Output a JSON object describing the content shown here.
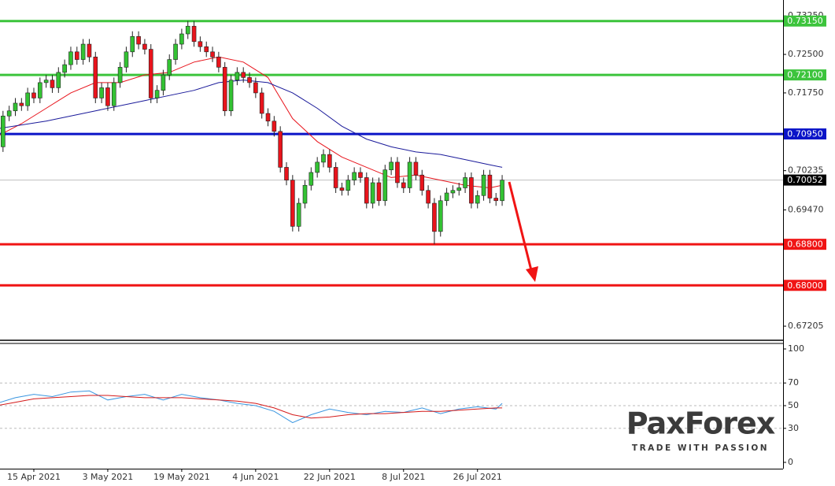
{
  "chart_data": {
    "type": "candlestick",
    "categories": [
      null,
      null,
      null,
      null,
      null,
      null,
      "15 Apr 2021",
      null,
      null,
      null,
      null,
      null,
      null,
      null,
      null,
      null,
      null,
      null,
      "3 May 2021",
      null,
      null,
      null,
      null,
      null,
      null,
      null,
      null,
      null,
      null,
      null,
      "19 May 2021",
      null,
      null,
      null,
      null,
      null,
      null,
      null,
      null,
      null,
      null,
      null,
      "4 Jun 2021",
      null,
      null,
      null,
      null,
      null,
      null,
      null,
      null,
      null,
      null,
      null,
      "22 Jun 2021",
      null,
      null,
      null,
      null,
      null,
      null,
      null,
      null,
      null,
      null,
      null,
      "8 Jul 2021",
      null,
      null,
      null,
      null,
      null,
      null,
      null,
      null,
      null,
      null,
      null,
      "26 Jul 2021",
      null,
      null,
      null,
      null
    ],
    "candles": [
      [
        0.704,
        0.708,
        0.703,
        0.707
      ],
      [
        0.707,
        0.714,
        0.706,
        0.713
      ],
      [
        0.713,
        0.715,
        0.712,
        0.714
      ],
      [
        0.714,
        0.7165,
        0.713,
        0.7155
      ],
      [
        0.7155,
        0.7165,
        0.714,
        0.715
      ],
      [
        0.715,
        0.7185,
        0.714,
        0.7175
      ],
      [
        0.7175,
        0.7185,
        0.7155,
        0.7165
      ],
      [
        0.7165,
        0.7205,
        0.7155,
        0.7195
      ],
      [
        0.7195,
        0.721,
        0.7185,
        0.72
      ],
      [
        0.72,
        0.721,
        0.7175,
        0.7185
      ],
      [
        0.7185,
        0.7225,
        0.7175,
        0.7215
      ],
      [
        0.7215,
        0.724,
        0.7205,
        0.723
      ],
      [
        0.723,
        0.7265,
        0.722,
        0.7255
      ],
      [
        0.7255,
        0.7265,
        0.723,
        0.724
      ],
      [
        0.724,
        0.728,
        0.723,
        0.727
      ],
      [
        0.727,
        0.728,
        0.7235,
        0.7245
      ],
      [
        0.7245,
        0.7255,
        0.7155,
        0.7165
      ],
      [
        0.7165,
        0.7195,
        0.7155,
        0.7185
      ],
      [
        0.7185,
        0.7195,
        0.714,
        0.715
      ],
      [
        0.715,
        0.7205,
        0.714,
        0.7195
      ],
      [
        0.7195,
        0.7235,
        0.7185,
        0.7225
      ],
      [
        0.7225,
        0.7265,
        0.7215,
        0.7255
      ],
      [
        0.7255,
        0.7295,
        0.7245,
        0.7285
      ],
      [
        0.7285,
        0.7295,
        0.726,
        0.727
      ],
      [
        0.727,
        0.728,
        0.725,
        0.726
      ],
      [
        0.726,
        0.727,
        0.7155,
        0.7165
      ],
      [
        0.7165,
        0.719,
        0.7155,
        0.718
      ],
      [
        0.718,
        0.722,
        0.717,
        0.721
      ],
      [
        0.721,
        0.725,
        0.72,
        0.724
      ],
      [
        0.724,
        0.728,
        0.723,
        0.727
      ],
      [
        0.727,
        0.73,
        0.726,
        0.729
      ],
      [
        0.729,
        0.7315,
        0.728,
        0.7305
      ],
      [
        0.7305,
        0.7315,
        0.7265,
        0.7275
      ],
      [
        0.7275,
        0.7285,
        0.7255,
        0.7265
      ],
      [
        0.7265,
        0.7275,
        0.7245,
        0.7255
      ],
      [
        0.7255,
        0.7265,
        0.7235,
        0.7245
      ],
      [
        0.7245,
        0.7255,
        0.7215,
        0.7225
      ],
      [
        0.7225,
        0.7235,
        0.713,
        0.714
      ],
      [
        0.714,
        0.721,
        0.713,
        0.72
      ],
      [
        0.72,
        0.7225,
        0.719,
        0.7215
      ],
      [
        0.7215,
        0.7225,
        0.7195,
        0.7205
      ],
      [
        0.7205,
        0.7215,
        0.7185,
        0.7195
      ],
      [
        0.7195,
        0.7205,
        0.7165,
        0.7175
      ],
      [
        0.7175,
        0.7185,
        0.7125,
        0.7135
      ],
      [
        0.7135,
        0.7145,
        0.711,
        0.712
      ],
      [
        0.712,
        0.713,
        0.709,
        0.71
      ],
      [
        0.71,
        0.711,
        0.702,
        0.703
      ],
      [
        0.703,
        0.704,
        0.6995,
        0.7005
      ],
      [
        0.7005,
        0.7015,
        0.6905,
        0.6915
      ],
      [
        0.6915,
        0.697,
        0.6905,
        0.696
      ],
      [
        0.696,
        0.7005,
        0.695,
        0.6995
      ],
      [
        0.6995,
        0.703,
        0.6985,
        0.702
      ],
      [
        0.702,
        0.705,
        0.701,
        0.704
      ],
      [
        0.704,
        0.7065,
        0.703,
        0.7055
      ],
      [
        0.7055,
        0.7065,
        0.702,
        0.703
      ],
      [
        0.703,
        0.704,
        0.698,
        0.699
      ],
      [
        0.699,
        0.7,
        0.6975,
        0.6985
      ],
      [
        0.6985,
        0.7015,
        0.6975,
        0.7005
      ],
      [
        0.7005,
        0.703,
        0.6995,
        0.702
      ],
      [
        0.702,
        0.703,
        0.7,
        0.701
      ],
      [
        0.701,
        0.702,
        0.695,
        0.696
      ],
      [
        0.696,
        0.701,
        0.695,
        0.7
      ],
      [
        0.7,
        0.701,
        0.6955,
        0.6965
      ],
      [
        0.6965,
        0.7035,
        0.6955,
        0.7025
      ],
      [
        0.7025,
        0.705,
        0.7015,
        0.704
      ],
      [
        0.704,
        0.705,
        0.699,
        0.7
      ],
      [
        0.7,
        0.701,
        0.698,
        0.699
      ],
      [
        0.699,
        0.705,
        0.698,
        0.704
      ],
      [
        0.704,
        0.705,
        0.7005,
        0.7015
      ],
      [
        0.7015,
        0.7025,
        0.6975,
        0.6985
      ],
      [
        0.6985,
        0.6995,
        0.695,
        0.696
      ],
      [
        0.696,
        0.697,
        0.688,
        0.6905
      ],
      [
        0.6905,
        0.6975,
        0.6895,
        0.6965
      ],
      [
        0.6965,
        0.699,
        0.6955,
        0.698
      ],
      [
        0.698,
        0.6995,
        0.697,
        0.6985
      ],
      [
        0.6985,
        0.7,
        0.6975,
        0.699
      ],
      [
        0.699,
        0.702,
        0.698,
        0.701
      ],
      [
        0.701,
        0.702,
        0.695,
        0.696
      ],
      [
        0.696,
        0.6985,
        0.695,
        0.6975
      ],
      [
        0.6975,
        0.7025,
        0.6965,
        0.7015
      ],
      [
        0.7015,
        0.7025,
        0.696,
        0.697
      ],
      [
        0.697,
        0.698,
        0.6955,
        0.6965
      ],
      [
        0.6965,
        0.7015,
        0.6955,
        0.7005
      ]
    ],
    "up_color": "#33c233",
    "down_color": "#e8141c",
    "ylim": [
      0.6693,
      0.7356
    ],
    "yticks": [
      {
        "value": 0.7325,
        "label": "0.73250"
      },
      {
        "value": 0.725,
        "label": "0.72500"
      },
      {
        "value": 0.7175,
        "label": "0.71750"
      },
      {
        "value": 0.70235,
        "label": "0.70235"
      },
      {
        "value": 0.6947,
        "label": "0.69470"
      },
      {
        "value": 0.67205,
        "label": "0.67205"
      }
    ],
    "levels": [
      {
        "value": 0.7315,
        "label": "0.73150",
        "color": "#3cc43c"
      },
      {
        "value": 0.721,
        "label": "0.72100",
        "color": "#3cc43c"
      },
      {
        "value": 0.7095,
        "label": "0.70950",
        "color": "#0a14c8"
      },
      {
        "value": 0.688,
        "label": "0.68800",
        "color": "#f01414"
      },
      {
        "value": 0.68,
        "label": "0.68000",
        "color": "#f01414"
      }
    ],
    "current_price": {
      "value": 0.70052,
      "label": "0.70052"
    },
    "series": [
      {
        "color": "#e8141c",
        "x": [
          0,
          4,
          8,
          12,
          16,
          20,
          24,
          28,
          32,
          36,
          40,
          44,
          48,
          52,
          56,
          60,
          64,
          68,
          72,
          76,
          80,
          82
        ],
        "values": [
          0.709,
          0.7115,
          0.7145,
          0.7175,
          0.7195,
          0.7195,
          0.721,
          0.7215,
          0.7235,
          0.7245,
          0.7235,
          0.7205,
          0.7125,
          0.708,
          0.705,
          0.703,
          0.701,
          0.7015,
          0.7005,
          0.6995,
          0.699,
          0.6995
        ]
      },
      {
        "color": "#1a1a9a",
        "x": [
          0,
          8,
          16,
          24,
          32,
          36,
          40,
          44,
          48,
          52,
          56,
          60,
          64,
          68,
          72,
          76,
          80,
          82
        ],
        "values": [
          0.7105,
          0.712,
          0.714,
          0.716,
          0.718,
          0.7195,
          0.72,
          0.7195,
          0.7175,
          0.7145,
          0.711,
          0.7085,
          0.707,
          0.706,
          0.7055,
          0.7045,
          0.7035,
          0.703
        ]
      }
    ],
    "oscillator": {
      "type": "line",
      "ylim": [
        0,
        100
      ],
      "yticks": [
        0,
        30,
        50,
        70,
        100
      ],
      "grid": true,
      "series": [
        {
          "color": "#3a96e0",
          "x": [
            0,
            3,
            6,
            9,
            12,
            15,
            18,
            21,
            24,
            27,
            30,
            33,
            36,
            39,
            42,
            45,
            48,
            51,
            54,
            57,
            60,
            63,
            66,
            69,
            72,
            75,
            78,
            81,
            82
          ],
          "values": [
            52,
            57,
            60,
            58,
            62,
            63,
            55,
            58,
            60,
            55,
            60,
            57,
            55,
            52,
            50,
            45,
            35,
            42,
            47,
            44,
            42,
            45,
            44,
            48,
            43,
            47,
            49,
            47,
            52
          ]
        },
        {
          "color": "#d41a1a",
          "x": [
            0,
            3,
            6,
            9,
            12,
            15,
            18,
            21,
            24,
            27,
            30,
            33,
            36,
            39,
            42,
            45,
            48,
            51,
            54,
            57,
            60,
            63,
            66,
            69,
            72,
            75,
            78,
            81,
            82
          ],
          "values": [
            50,
            53,
            56,
            57,
            58,
            59,
            59,
            58,
            57,
            57,
            57,
            56,
            55,
            54,
            52,
            48,
            42,
            39,
            40,
            42,
            43,
            43,
            44,
            45,
            45,
            46,
            47,
            48,
            48
          ]
        }
      ]
    }
  },
  "logo": {
    "name": "PaxForex",
    "tagline": "TRADE WITH PASSION"
  }
}
